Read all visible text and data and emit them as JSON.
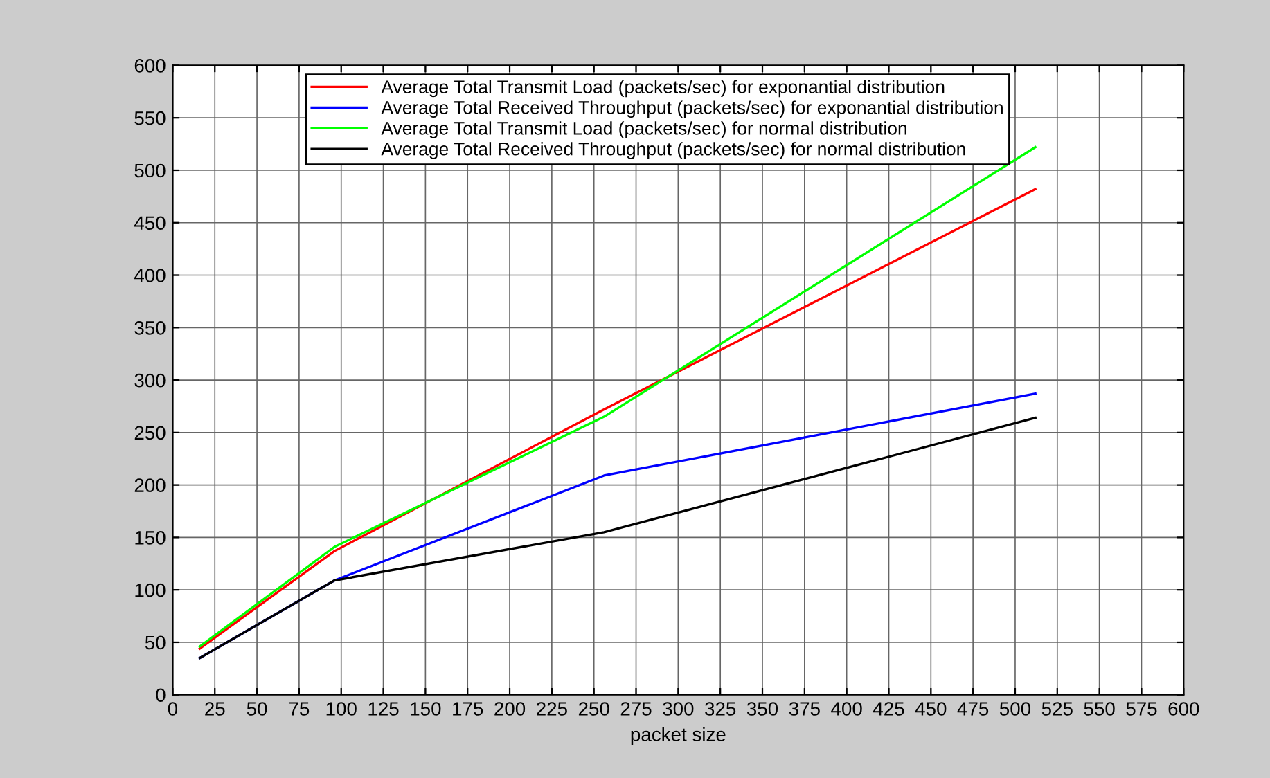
{
  "chart_data": {
    "type": "line",
    "xlabel": "packet size",
    "x": [
      16,
      96,
      256,
      512
    ],
    "xlim": [
      0,
      600
    ],
    "xticks": [
      0,
      25,
      50,
      75,
      100,
      125,
      150,
      175,
      200,
      225,
      250,
      275,
      300,
      325,
      350,
      375,
      400,
      425,
      450,
      475,
      500,
      525,
      550,
      575,
      600
    ],
    "ylim": [
      0,
      600
    ],
    "yticks": [
      0,
      50,
      100,
      150,
      200,
      250,
      300,
      350,
      400,
      450,
      500,
      550,
      600
    ],
    "grid": true,
    "legend": "top",
    "marker": "none",
    "line_style": "solid",
    "series": [
      {
        "name": "Average Total Transmit Load (packets/sec) for exponantial distribution",
        "color": "#ff0000",
        "values": [
          44,
          137,
          272,
          482
        ]
      },
      {
        "name": "Average Total Received Throughput (packets/sec) for exponantial distribution",
        "color": "#0000ff",
        "values": [
          35,
          109,
          209,
          287
        ]
      },
      {
        "name": "Average Total Transmit Load (packets/sec) for normal distribution",
        "color": "#00ff00",
        "values": [
          46,
          141,
          265,
          522
        ]
      },
      {
        "name": "Average Total Received Throughput (packets/sec) for normal distribution",
        "color": "#000000",
        "values": [
          35,
          109,
          155,
          264
        ]
      }
    ]
  }
}
